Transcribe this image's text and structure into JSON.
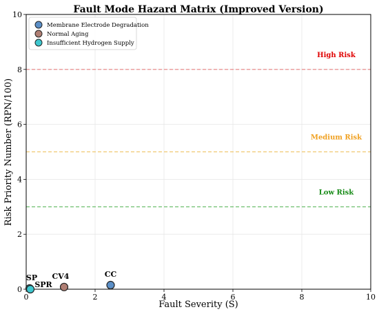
{
  "chart_data": {
    "type": "scatter",
    "title": "Fault Mode Hazard Matrix (Improved Version)",
    "xlabel": "Fault Severity (S)",
    "ylabel": "Risk Priority Number (RPN/100)",
    "xlim": [
      0,
      10
    ],
    "ylim": [
      0,
      10
    ],
    "xticks": [
      0,
      2,
      4,
      6,
      8,
      10
    ],
    "yticks": [
      0,
      2,
      4,
      6,
      8,
      10
    ],
    "grid": true,
    "legend_position": "top-left",
    "series": [
      {
        "name": "Membrane Electrode Degradation",
        "color": "#5b8fc7",
        "points": [
          {
            "label": "CC",
            "x": 2.45,
            "y": 0.15
          }
        ]
      },
      {
        "name": "Normal Aging",
        "color": "#b07f74",
        "points": [
          {
            "label": "CV4",
            "x": 1.1,
            "y": 0.08
          }
        ]
      },
      {
        "name": "Insufficient Hydrogen Supply",
        "color": "#3ec7cf",
        "points": [
          {
            "label": "SP",
            "x": 0.1,
            "y": 0.03
          },
          {
            "label": "SPR",
            "x": 0.12,
            "y": 0.0
          }
        ]
      }
    ],
    "thresholds": [
      {
        "label": "High Risk",
        "y": 8,
        "color": "#e88080",
        "text_color": "#e00000",
        "label_y": 8.55
      },
      {
        "label": "Medium Risk",
        "y": 5,
        "color": "#f0c870",
        "text_color": "#f0a020",
        "label_y": 5.55
      },
      {
        "label": "Low Risk",
        "y": 3,
        "color": "#5cb85c",
        "text_color": "#168a16",
        "label_y": 3.55
      }
    ]
  }
}
